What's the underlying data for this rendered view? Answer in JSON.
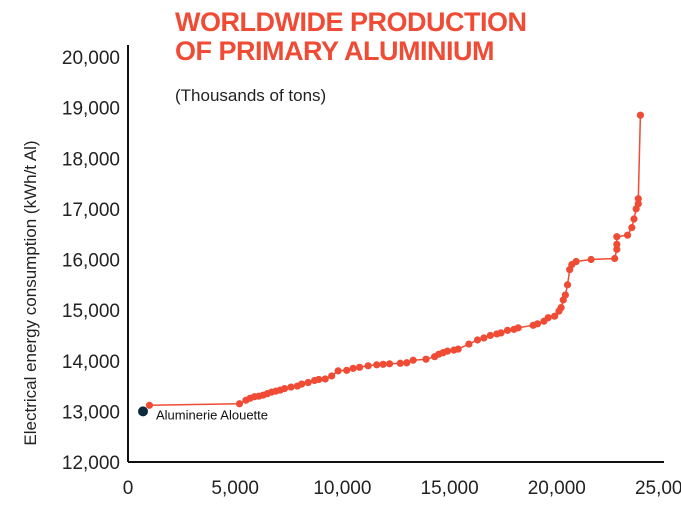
{
  "chart_data": {
    "type": "line",
    "title": "WORLDWIDE PRODUCTION",
    "title_line2": "OF PRIMARY ALUMINIUM",
    "subtitle": "(Thousands of tons)",
    "xlabel": "",
    "ylabel": "Electrical energy consumption (kWh/t Al)",
    "xlim": [
      0,
      25000
    ],
    "ylim": [
      12000,
      20000
    ],
    "x_ticks": [
      0,
      5000,
      10000,
      15000,
      20000,
      25000
    ],
    "x_tick_labels": [
      "0",
      "5,000",
      "10,000",
      "15,000",
      "20,000",
      "25,000"
    ],
    "y_ticks": [
      12000,
      13000,
      14000,
      15000,
      16000,
      17000,
      18000,
      19000,
      20000
    ],
    "y_tick_labels": [
      "12,000",
      "13,000",
      "14,000",
      "15,000",
      "16,000",
      "17,000",
      "18,000",
      "19,000",
      "20,000"
    ],
    "grid": false,
    "colors": {
      "series": "#ef4b35",
      "highlight": "#0d2a3a",
      "title": "#ef4b35",
      "axis": "#111111"
    },
    "series": [
      {
        "x": [
          1000,
          5200,
          5500,
          5700,
          5900,
          6100,
          6300,
          6500,
          6700,
          6900,
          7100,
          7300,
          7600,
          7900,
          8100,
          8400,
          8700,
          8900,
          9200,
          9500,
          9800,
          10200,
          10500,
          10800,
          11200,
          11600,
          11900,
          12200,
          12700,
          13000,
          13300,
          13900,
          14300,
          14500,
          14700,
          14900,
          15200,
          15400,
          15900,
          16300,
          16600,
          16900,
          17200,
          17400,
          17700,
          18000,
          18200,
          18900,
          19100,
          19400,
          19600,
          19900,
          20100,
          20200,
          20300,
          20400,
          20500,
          20600,
          20700,
          20900,
          21600,
          22700,
          22800,
          22800,
          22800,
          23300,
          23500,
          23600,
          23700,
          23800,
          23800,
          23900
        ],
        "y": [
          13120,
          13150,
          13220,
          13260,
          13290,
          13300,
          13320,
          13350,
          13380,
          13400,
          13420,
          13450,
          13480,
          13500,
          13540,
          13570,
          13610,
          13630,
          13640,
          13700,
          13800,
          13810,
          13850,
          13870,
          13900,
          13920,
          13930,
          13940,
          13950,
          13960,
          14010,
          14030,
          14080,
          14130,
          14160,
          14190,
          14210,
          14230,
          14330,
          14410,
          14450,
          14500,
          14530,
          14550,
          14600,
          14620,
          14650,
          14700,
          14730,
          14780,
          14850,
          14880,
          14980,
          15050,
          15200,
          15300,
          15500,
          15800,
          15900,
          15960,
          16000,
          16020,
          16200,
          16300,
          16450,
          16480,
          16630,
          16800,
          17000,
          17100,
          17200,
          18850
        ]
      }
    ],
    "highlight_point": {
      "label": "Aluminerie Alouette",
      "x": 700,
      "y": 13000
    }
  }
}
